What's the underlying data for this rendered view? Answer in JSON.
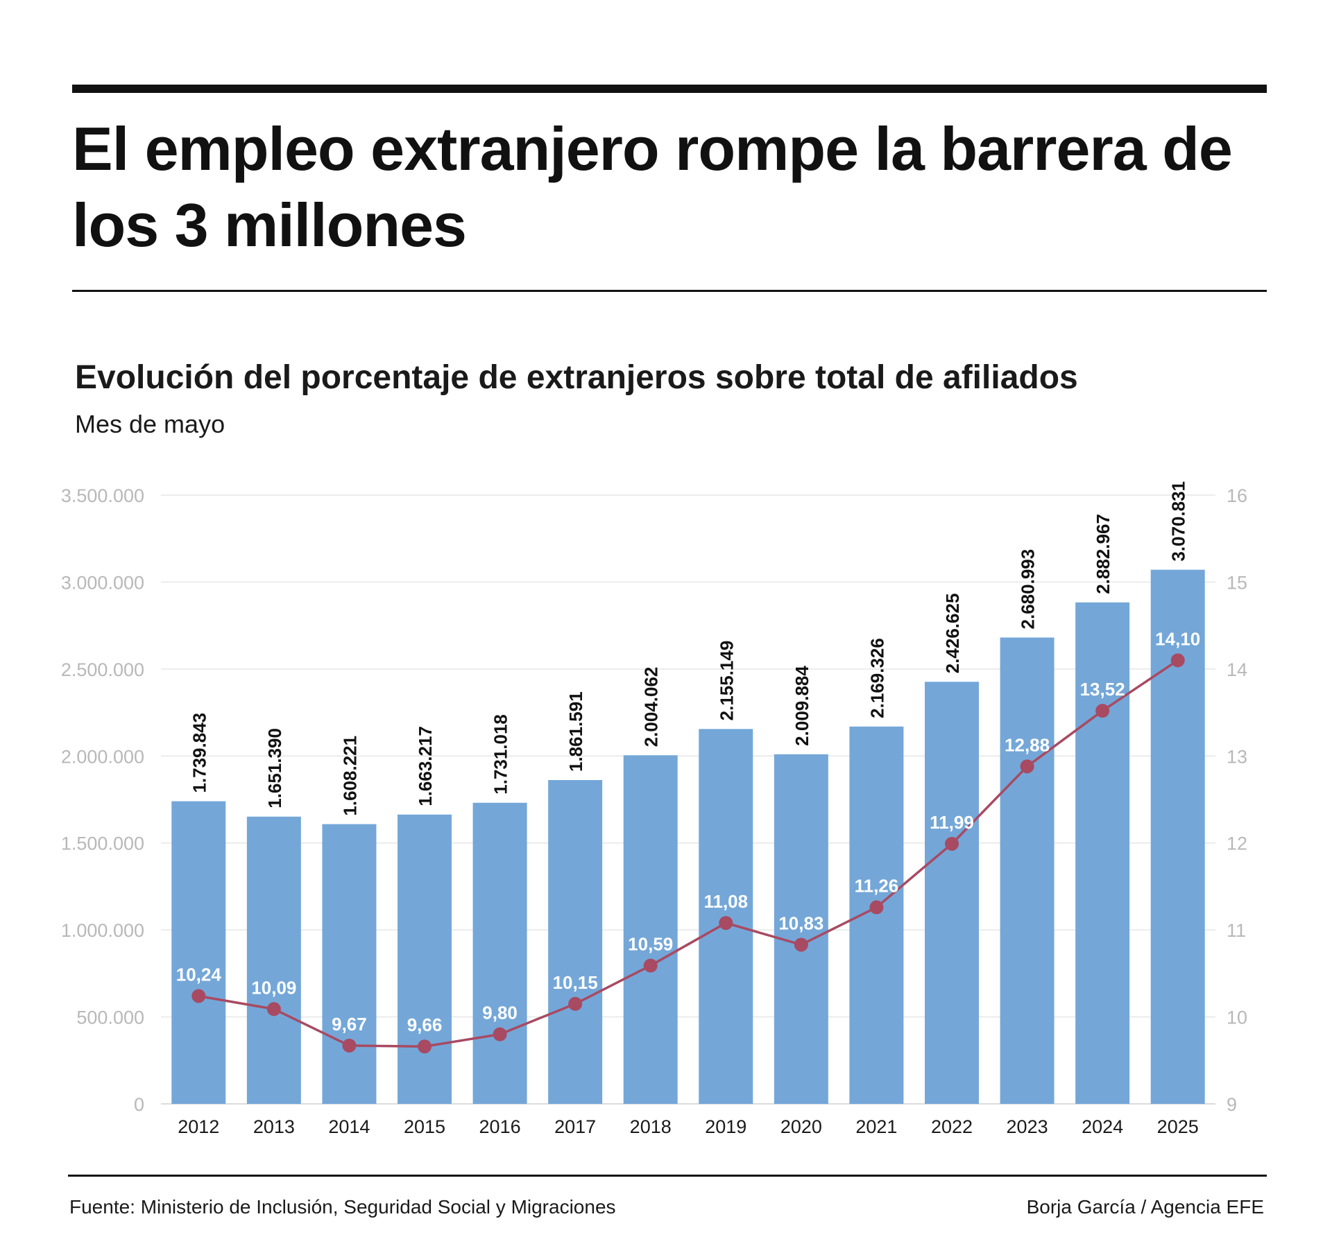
{
  "header": {
    "title": "El empleo extranjero rompe la barrera de los 3 millones"
  },
  "footer": {
    "source": "Fuente: Ministerio de Inclusión, Seguridad Social y Migraciones",
    "credit": "Borja García / Agencia EFE"
  },
  "colors": {
    "bars": "#74a7d8",
    "line": "#a84a62",
    "axis_text": "#b8b8b8",
    "grid": "#e6e6e6"
  },
  "chart_data": {
    "type": "bar",
    "title": "Evolución del porcentaje de extranjeros sobre total de afiliados",
    "subtitle": "Mes de mayo",
    "categories": [
      "2012",
      "2013",
      "2014",
      "2015",
      "2016",
      "2017",
      "2018",
      "2019",
      "2020",
      "2021",
      "2022",
      "2023",
      "2024",
      "2025"
    ],
    "series": [
      {
        "type": "bar",
        "axis": "left",
        "values": [
          1739843,
          1651390,
          1608221,
          1663217,
          1731018,
          1861591,
          2004062,
          2155149,
          2009884,
          2169326,
          2426625,
          2680993,
          2882967,
          3070831
        ],
        "labels": [
          "1.739.843",
          "1.651.390",
          "1.608.221",
          "1.663.217",
          "1.731.018",
          "1.861.591",
          "2.004.062",
          "2.155.149",
          "2.009.884",
          "2.169.326",
          "2.426.625",
          "2.680.993",
          "2.882.967",
          "3.070.831"
        ]
      },
      {
        "type": "line",
        "axis": "right",
        "values": [
          10.24,
          10.09,
          9.67,
          9.66,
          9.8,
          10.15,
          10.59,
          11.08,
          10.83,
          11.26,
          11.99,
          12.88,
          13.52,
          14.1
        ],
        "labels": [
          "10,24",
          "10,09",
          "9,67",
          "9,66",
          "9,80",
          "10,15",
          "10,59",
          "11,08",
          "10,83",
          "11,26",
          "11,99",
          "12,88",
          "13,52",
          "14,10"
        ]
      }
    ],
    "ylim_left": [
      0,
      3500000
    ],
    "ylim_right": [
      9,
      16
    ],
    "yticks_left": [
      "0",
      "500.000",
      "1.000.000",
      "1.500.000",
      "2.000.000",
      "2.500.000",
      "3.000.000",
      "3.500.000"
    ],
    "yticks_right": [
      "9",
      "10",
      "11",
      "12",
      "13",
      "14",
      "15",
      "16"
    ],
    "grid": true
  }
}
